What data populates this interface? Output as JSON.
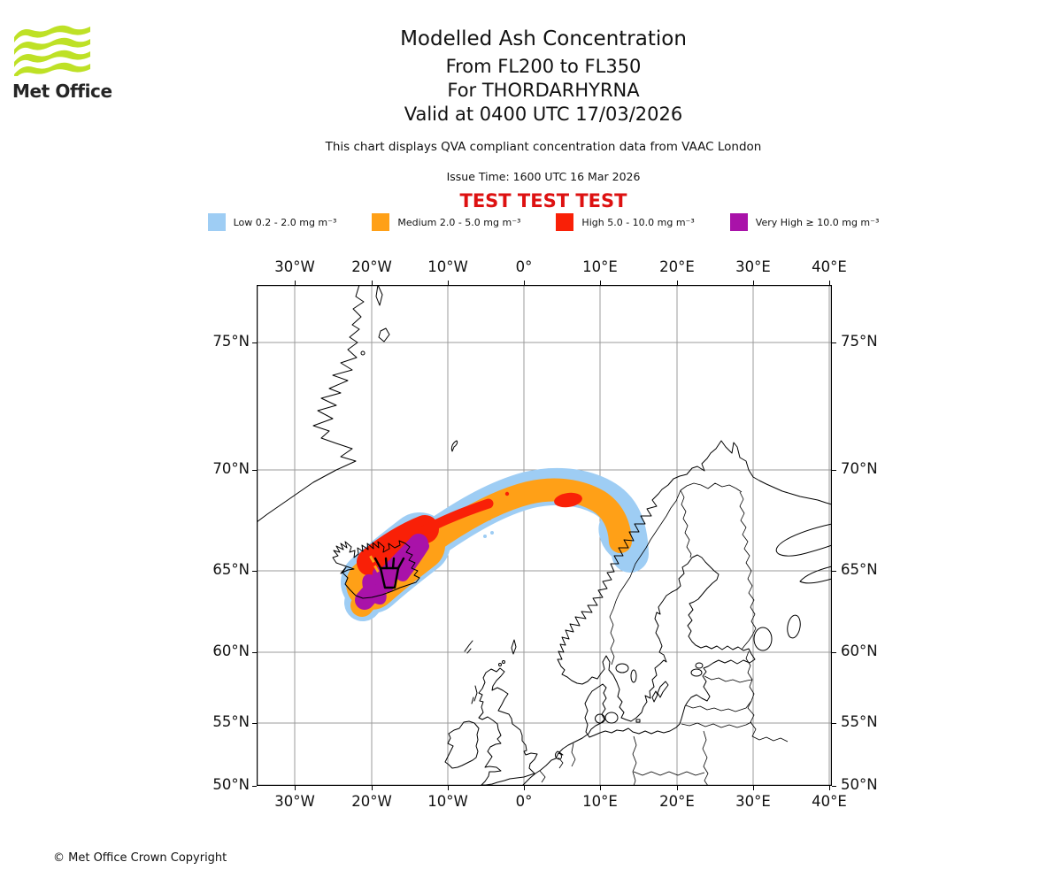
{
  "header": {
    "logo_text": "Met Office",
    "title": "Modelled Ash Concentration",
    "subtitle_levels": "From FL200 to FL350",
    "subtitle_volcano": "For THORDARHYRNA",
    "subtitle_valid": "Valid at 0400 UTC 17/03/2026",
    "description": "This chart displays QVA compliant concentration data from VAAC London",
    "issue_time": "Issue Time: 1600 UTC 16 Mar 2026",
    "test_banner": "TEST TEST TEST"
  },
  "legend": {
    "items": [
      {
        "label": "Low 0.2 - 2.0 mg m⁻³",
        "color": "#9ECDF4"
      },
      {
        "label": "Medium 2.0 - 5.0 mg m⁻³",
        "color": "#FFA017"
      },
      {
        "label": "High 5.0 - 10.0 mg m⁻³",
        "color": "#F92007"
      },
      {
        "label": "Very High ≥ 10.0 mg m⁻³",
        "color": "#A912A9"
      }
    ]
  },
  "map": {
    "x_ticks": [
      "30°W",
      "20°W",
      "10°W",
      "0°",
      "10°E",
      "20°E",
      "30°E",
      "40°E"
    ],
    "y_ticks": [
      "75°N",
      "70°N",
      "65°N",
      "60°N",
      "55°N",
      "50°N"
    ]
  },
  "footer": {
    "copyright": "© Met Office Crown Copyright"
  },
  "colors": {
    "low": "#9ECDF4",
    "medium": "#FFA017",
    "high": "#F92007",
    "very_high": "#A912A9",
    "grid": "#9B9B9B",
    "test_text": "#DD1111",
    "logo_green": "#BEE126"
  },
  "chart_data": {
    "type": "map-contour",
    "title": "Modelled Ash Concentration",
    "flight_levels": "FL200 to FL350",
    "volcano": {
      "name": "THORDARHYRNA",
      "approx_location": "64.3°N 17.5°W (southern Iceland)",
      "marker": "volcano-symbol"
    },
    "valid_time": "0400 UTC 17/03/2026",
    "issue_time": "1600 UTC 16 Mar 2026",
    "source": "VAAC London",
    "projection": "cylindrical (Mercator-like), lon -35..40, lat 50..77",
    "x_axis": {
      "label": "longitude",
      "ticks": [
        "30°W",
        "20°W",
        "10°W",
        "0°",
        "10°E",
        "20°E",
        "30°E",
        "40°E"
      ],
      "grid": true
    },
    "y_axis": {
      "label": "latitude",
      "ticks": [
        "75°N",
        "70°N",
        "65°N",
        "60°N",
        "55°N",
        "50°N"
      ],
      "grid": true
    },
    "concentration_bands": [
      {
        "name": "Low",
        "range_mg_m3": "0.2 - 2.0",
        "color": "#9ECDF4"
      },
      {
        "name": "Medium",
        "range_mg_m3": "2.0 - 5.0",
        "color": "#FFA017"
      },
      {
        "name": "High",
        "range_mg_m3": "5.0 - 10.0",
        "color": "#F92007"
      },
      {
        "name": "Very High",
        "range_mg_m3": ">= 10.0",
        "color": "#A912A9"
      }
    ],
    "plume_summary": {
      "shape": "curved band from southern Iceland arcing northeast, cresting near 69N at 0E, then descending southeast to the Norwegian coast near 66N 13E",
      "very_high_extent": "over southern Iceland, approx 63.5N-66N, 22W-16W",
      "high_extent": "northeast of Iceland with an elongated streak to about 5W along the band crest and an isolated patch near 68.5N 5E",
      "medium_extent": "continuous band along the whole plume, plus a small patch at the Norwegian coast near 66.5N 12E",
      "low_extent": "thin fringe surrounding the medium band along its full length"
    }
  }
}
